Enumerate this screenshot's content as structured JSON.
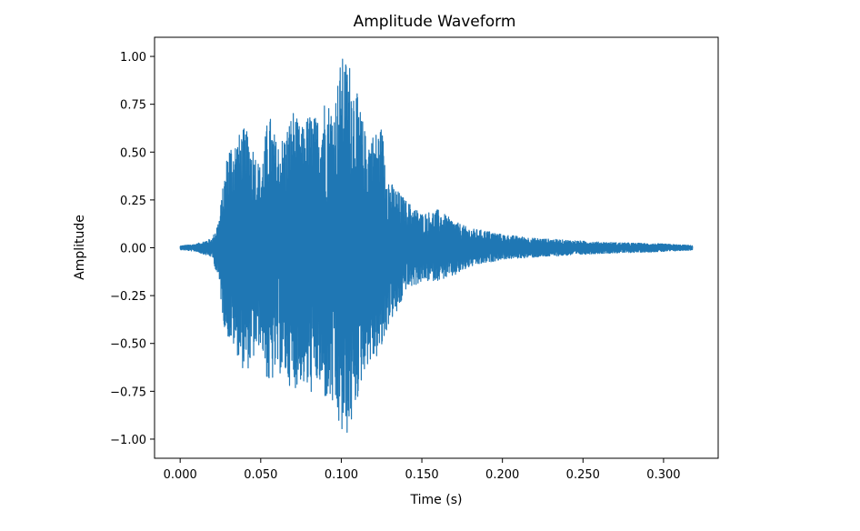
{
  "chart_data": {
    "type": "line",
    "title": "Amplitude Waveform",
    "xlabel": "Time (s)",
    "ylabel": "Amplitude",
    "xlim": [
      -0.0159,
      0.3339
    ],
    "ylim": [
      -1.1,
      1.1
    ],
    "xticks": [
      0.0,
      0.05,
      0.1,
      0.15,
      0.2,
      0.25,
      0.3
    ],
    "xtick_labels": [
      "0.000",
      "0.050",
      "0.100",
      "0.150",
      "0.200",
      "0.250",
      "0.300"
    ],
    "yticks": [
      -1.0,
      -0.75,
      -0.5,
      -0.25,
      0.0,
      0.25,
      0.5,
      0.75,
      1.0
    ],
    "ytick_labels": [
      "−1.00",
      "−0.75",
      "−0.50",
      "−0.25",
      "0.00",
      "0.25",
      "0.50",
      "0.75",
      "1.00"
    ],
    "grid": false,
    "line_color": "#1f77b4",
    "series": [
      {
        "x_start": 0.0,
        "x_end": 0.318,
        "envelope": {
          "t": [
            0.0,
            0.01,
            0.02,
            0.024,
            0.027,
            0.03,
            0.035,
            0.04,
            0.045,
            0.05,
            0.055,
            0.06,
            0.065,
            0.07,
            0.075,
            0.08,
            0.085,
            0.09,
            0.095,
            0.1,
            0.105,
            0.11,
            0.115,
            0.12,
            0.125,
            0.13,
            0.135,
            0.14,
            0.15,
            0.16,
            0.17,
            0.18,
            0.19,
            0.2,
            0.22,
            0.24,
            0.26,
            0.28,
            0.3,
            0.318
          ],
          "max": [
            0.01,
            0.02,
            0.05,
            0.15,
            0.35,
            0.55,
            0.58,
            0.63,
            0.55,
            0.42,
            0.72,
            0.55,
            0.6,
            0.73,
            0.62,
            0.71,
            0.68,
            0.8,
            0.73,
            1.0,
            0.98,
            0.8,
            0.6,
            0.6,
            0.64,
            0.35,
            0.3,
            0.25,
            0.18,
            0.2,
            0.14,
            0.1,
            0.09,
            0.07,
            0.05,
            0.04,
            0.03,
            0.025,
            0.02,
            0.012
          ],
          "min": [
            -0.01,
            -0.02,
            -0.05,
            -0.18,
            -0.4,
            -0.48,
            -0.55,
            -0.66,
            -0.6,
            -0.5,
            -0.75,
            -0.65,
            -0.68,
            -0.75,
            -0.7,
            -0.78,
            -0.72,
            -0.8,
            -0.85,
            -1.0,
            -0.98,
            -0.8,
            -0.62,
            -0.6,
            -0.55,
            -0.38,
            -0.35,
            -0.22,
            -0.18,
            -0.17,
            -0.15,
            -0.1,
            -0.08,
            -0.06,
            -0.05,
            -0.04,
            -0.03,
            -0.025,
            -0.02,
            -0.012
          ]
        }
      }
    ]
  }
}
